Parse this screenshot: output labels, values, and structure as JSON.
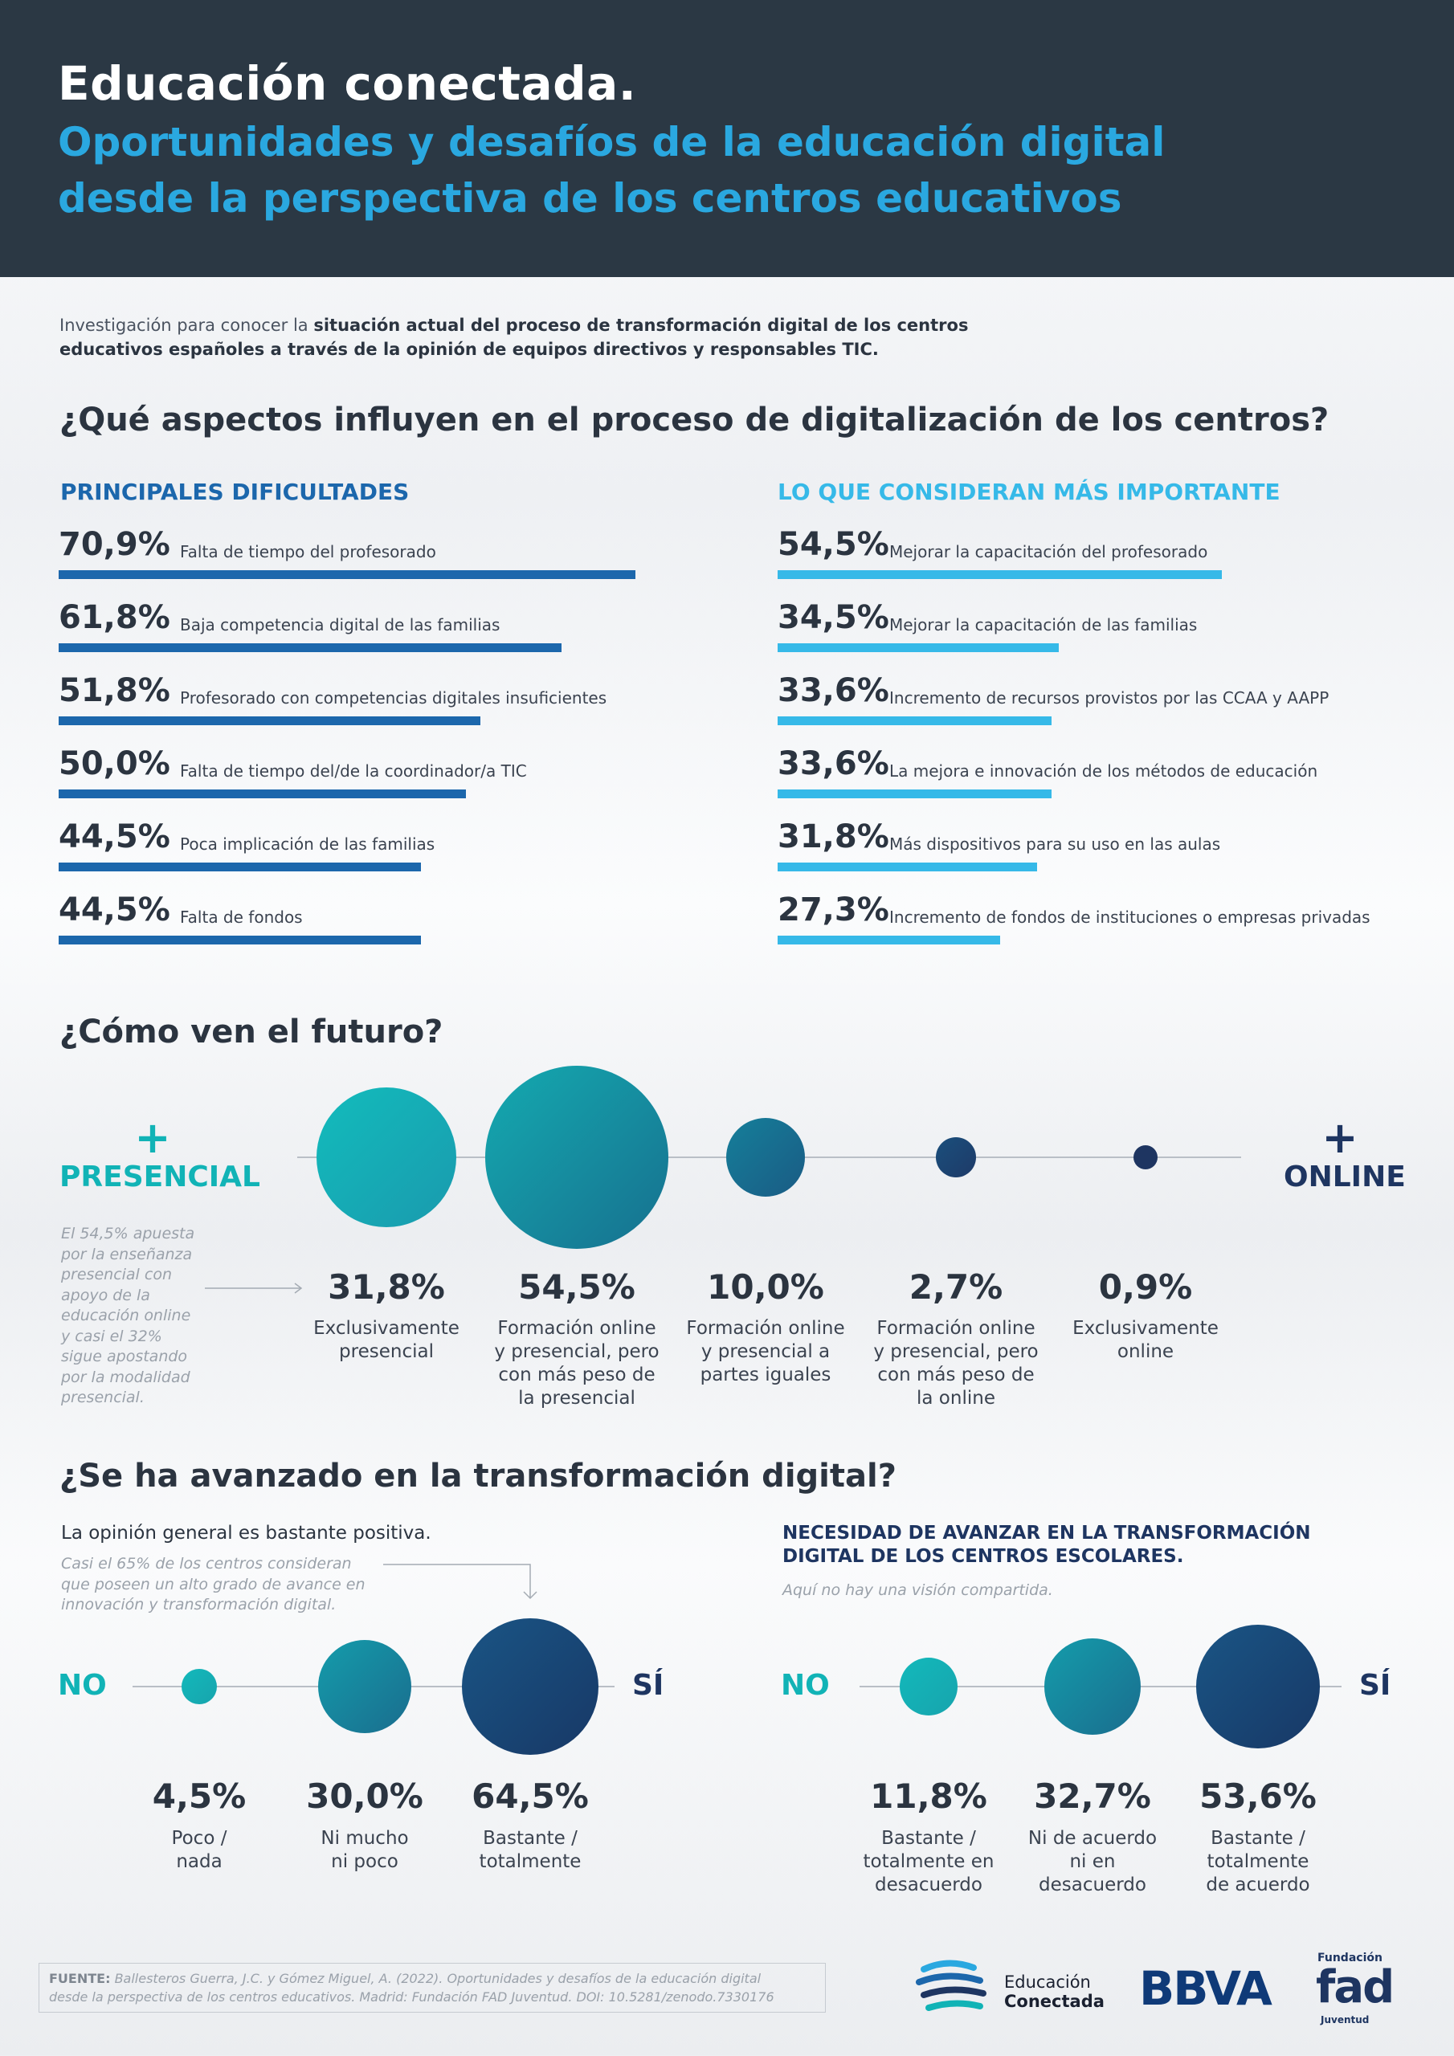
{
  "header": {
    "title": "Educación conectada.",
    "subtitle_line1": "Oportunidades y desafíos de la educación digital",
    "subtitle_line2": "desde la perspectiva de los centros educativos"
  },
  "intro": {
    "prefix": "Investigación para conocer la ",
    "bold": "situación actual del proceso de transformación digital de los centros educativos españoles a través de la opinión de equipos directivos y responsables TIC."
  },
  "section1": {
    "title": "¿Qué aspectos influyen en el proceso de digitalización de los centros?",
    "dificultades": {
      "heading": "PRINCIPALES DIFICULTADES",
      "color": "#1c67ac",
      "items": [
        {
          "pct": "70,9%",
          "value": 70.9,
          "label": "Falta de tiempo del profesorado"
        },
        {
          "pct": "61,8%",
          "value": 61.8,
          "label": "Baja competencia digital de las familias"
        },
        {
          "pct": "51,8%",
          "value": 51.8,
          "label": "Profesorado con competencias digitales insuficientes"
        },
        {
          "pct": "50,0%",
          "value": 50.0,
          "label": "Falta de tiempo del/de la coordinador/a TIC"
        },
        {
          "pct": "44,5%",
          "value": 44.5,
          "label": "Poca implicación de las familias"
        },
        {
          "pct": "44,5%",
          "value": 44.5,
          "label": "Falta de fondos"
        }
      ]
    },
    "importante": {
      "heading": "LO QUE CONSIDERAN MÁS IMPORTANTE",
      "color": "#36b9e8",
      "items": [
        {
          "pct": "54,5%",
          "value": 54.5,
          "label": "Mejorar la capacitación del profesorado"
        },
        {
          "pct": "34,5%",
          "value": 34.5,
          "label": "Mejorar la capacitación de las familias"
        },
        {
          "pct": "33,6%",
          "value": 33.6,
          "label": "Incremento de recursos provistos por las CCAA y AAPP"
        },
        {
          "pct": "33,6%",
          "value": 33.6,
          "label": "La mejora e innovación de los métodos de educación"
        },
        {
          "pct": "31,8%",
          "value": 31.8,
          "label": "Más dispositivos para su uso en las aulas"
        },
        {
          "pct": "27,3%",
          "value": 27.3,
          "label": "Incremento de fondos de instituciones o empresas privadas"
        }
      ]
    }
  },
  "section2": {
    "title": "¿Cómo ven el futuro?",
    "left_plus": "+",
    "left_label": "PRESENCIAL",
    "right_plus": "+",
    "right_label": "ONLINE",
    "note": "El 54,5% apuesta\npor la enseñanza\npresencial con\napoyo de la\neducación online\ny casi el 32%\nsigue apostando\npor la modalidad\npresencial.",
    "items": [
      {
        "pct": "31,8%",
        "value": 31.8,
        "label": "Exclusivamente\npresencial"
      },
      {
        "pct": "54,5%",
        "value": 54.5,
        "label": "Formación online\ny presencial, pero\ncon más peso de\nla presencial"
      },
      {
        "pct": "10,0%",
        "value": 10.0,
        "label": "Formación online\ny presencial a\npartes iguales"
      },
      {
        "pct": "2,7%",
        "value": 2.7,
        "label": "Formación online\ny presencial, pero\ncon más peso de\nla online"
      },
      {
        "pct": "0,9%",
        "value": 0.9,
        "label": "Exclusivamente\nonline"
      }
    ]
  },
  "section3": {
    "title": "¿Se ha avanzado en la transformación digital?",
    "left": {
      "heading": "La opinión general es bastante positiva.",
      "note": "Casi el 65% de los centros consideran\nque poseen un alto grado de avance en\ninnovación y transformación digital.",
      "no": "NO",
      "si": "SÍ",
      "items": [
        {
          "pct": "4,5%",
          "value": 4.5,
          "label": "Poco /\nnada"
        },
        {
          "pct": "30,0%",
          "value": 30.0,
          "label": "Ni mucho\nni poco"
        },
        {
          "pct": "64,5%",
          "value": 64.5,
          "label": "Bastante /\ntotalmente"
        }
      ]
    },
    "right": {
      "heading": "NECESIDAD DE AVANZAR EN LA TRANSFORMACIÓN\nDIGITAL DE LOS CENTROS ESCOLARES.",
      "note": "Aquí no hay una visión compartida.",
      "no": "NO",
      "si": "SÍ",
      "items": [
        {
          "pct": "11,8%",
          "value": 11.8,
          "label": "Bastante /\ntotalmente en\ndesacuerdo"
        },
        {
          "pct": "32,7%",
          "value": 32.7,
          "label": "Ni de acuerdo\nni en\ndesacuerdo"
        },
        {
          "pct": "53,6%",
          "value": 53.6,
          "label": "Bastante /\ntotalmente\nde acuerdo"
        }
      ]
    }
  },
  "footer": {
    "source_label": "FUENTE:",
    "source_text": " Ballesteros Guerra, J.C. y Gómez Miguel, A. (2022). Oportunidades y desafíos de la educación digital\ndesde la perspectiva de los centros educativos. Madrid: Fundación FAD Juventud. DOI: 10.5281/zenodo.7330176",
    "logo1_line1": "Educación",
    "logo1_line2": "Conectada",
    "logo2": "BBVA",
    "logo3_top": "Fundación",
    "logo3_main": "fad",
    "logo3_bottom": "Juventud"
  },
  "colors": {
    "header_bg": "#2b3844",
    "accent_blue": "#2aa8e0",
    "dark_bar": "#1c67ac",
    "light_bar": "#36b9e8",
    "teal": "#11b3b6",
    "navy": "#1e3561"
  }
}
